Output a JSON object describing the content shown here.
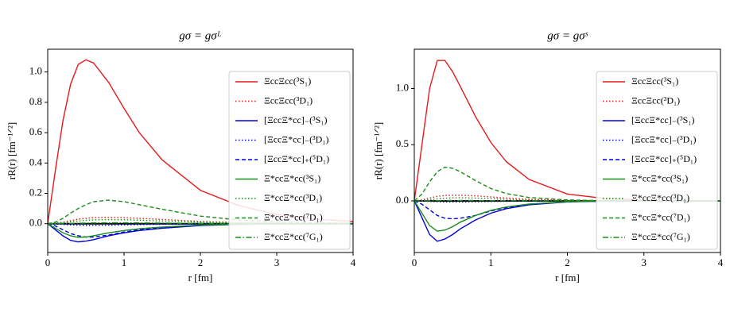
{
  "chart_data": [
    {
      "type": "line",
      "title": "gσ = gσᴸ",
      "xlabel": "r [fm]",
      "ylabel": "rR(r) [fm⁻¹ᐟ²]",
      "x": [
        0,
        0.1,
        0.2,
        0.3,
        0.4,
        0.5,
        0.6,
        0.8,
        1.0,
        1.2,
        1.5,
        2.0,
        2.5,
        3.0,
        3.5,
        4.0
      ],
      "xlim": [
        0,
        4
      ],
      "xticks": [
        0,
        1,
        2,
        3,
        4
      ],
      "ylim": [
        -0.19,
        1.15
      ],
      "yticks": [
        {
          "value": 0,
          "label": "0.0"
        },
        0.2,
        0.4,
        0.6,
        0.8,
        {
          "value": 1,
          "label": "1.0"
        }
      ],
      "legend": "upper right",
      "series": [
        {
          "name": "ΞccΞcc(³S₁)",
          "color": "#e41a1c",
          "style": "solid",
          "values": [
            0,
            0.35,
            0.68,
            0.92,
            1.05,
            1.08,
            1.06,
            0.93,
            0.76,
            0.6,
            0.42,
            0.22,
            0.12,
            0.06,
            0.03,
            0.015
          ]
        },
        {
          "name": "ΞccΞcc(³D₁)",
          "color": "#e41a1c",
          "style": "dotted",
          "values": [
            0,
            0.003,
            0.01,
            0.02,
            0.03,
            0.035,
            0.04,
            0.042,
            0.04,
            0.035,
            0.028,
            0.015,
            0.008,
            0.004,
            0.002,
            0.001
          ]
        },
        {
          "name": "[ΞccΞ*cc]₋(³S₁)",
          "color": "#0000dd",
          "style": "solid",
          "values": [
            0,
            -0.04,
            -0.08,
            -0.11,
            -0.12,
            -0.115,
            -0.105,
            -0.08,
            -0.06,
            -0.045,
            -0.03,
            -0.012,
            -0.005,
            -0.002,
            -0.001,
            0
          ]
        },
        {
          "name": "[ΞccΞ*cc]₋(³D₁)",
          "color": "#0000dd",
          "style": "dotted",
          "values": [
            0,
            -0.002,
            -0.005,
            -0.008,
            -0.01,
            -0.011,
            -0.011,
            -0.01,
            -0.008,
            -0.006,
            -0.004,
            -0.002,
            -0.001,
            0,
            0,
            0
          ]
        },
        {
          "name": "[ΞccΞ*cc]₊(⁵D₁)",
          "color": "#0000dd",
          "style": "dashed",
          "values": [
            0,
            -0.015,
            -0.04,
            -0.065,
            -0.08,
            -0.088,
            -0.088,
            -0.075,
            -0.055,
            -0.04,
            -0.025,
            -0.01,
            -0.004,
            -0.002,
            -0.001,
            0
          ]
        },
        {
          "name": "Ξ*ccΞ*cc(³S₁)",
          "color": "#1a8c1a",
          "style": "solid",
          "values": [
            0,
            -0.03,
            -0.06,
            -0.08,
            -0.09,
            -0.088,
            -0.08,
            -0.06,
            -0.045,
            -0.033,
            -0.022,
            -0.009,
            -0.004,
            -0.002,
            -0.001,
            0
          ]
        },
        {
          "name": "Ξ*ccΞ*cc(³D₁)",
          "color": "#1a8c1a",
          "style": "dotted",
          "values": [
            0,
            0.002,
            0.007,
            0.013,
            0.018,
            0.022,
            0.025,
            0.027,
            0.026,
            0.023,
            0.018,
            0.01,
            0.005,
            0.002,
            0.001,
            0
          ]
        },
        {
          "name": "Ξ*ccΞ*cc(⁷D₁)",
          "color": "#1a8c1a",
          "style": "dashed",
          "values": [
            0,
            0.01,
            0.035,
            0.07,
            0.1,
            0.125,
            0.145,
            0.155,
            0.145,
            0.125,
            0.095,
            0.05,
            0.025,
            0.012,
            0.006,
            0.003
          ]
        },
        {
          "name": "Ξ*ccΞ*cc(⁷G₁)",
          "color": "#1a8c1a",
          "style": "dashdot",
          "values": [
            0,
            0,
            0.001,
            0.002,
            0.003,
            0.004,
            0.005,
            0.006,
            0.006,
            0.005,
            0.004,
            0.002,
            0.001,
            0,
            0,
            0
          ]
        }
      ]
    },
    {
      "type": "line",
      "title": "gσ = gσˢ",
      "xlabel": "r [fm]",
      "ylabel": "rR(r) [fm⁻¹ᐟ²]",
      "x": [
        0,
        0.1,
        0.2,
        0.3,
        0.4,
        0.5,
        0.6,
        0.8,
        1.0,
        1.2,
        1.5,
        2.0,
        2.5,
        3.0,
        3.5,
        4.0
      ],
      "xlim": [
        0,
        4
      ],
      "xticks": [
        0,
        1,
        2,
        3,
        4
      ],
      "ylim": [
        -0.46,
        1.35
      ],
      "yticks": [
        {
          "value": 0,
          "label": "0.0"
        },
        0.5,
        {
          "value": 1,
          "label": "1.0"
        }
      ],
      "legend": "upper right",
      "series": [
        {
          "name": "ΞccΞcc(³S₁)",
          "color": "#e41a1c",
          "style": "solid",
          "values": [
            0,
            0.5,
            1.0,
            1.25,
            1.25,
            1.15,
            1.02,
            0.75,
            0.52,
            0.35,
            0.19,
            0.06,
            0.02,
            0.007,
            0.002,
            0.001
          ]
        },
        {
          "name": "ΞccΞcc(³D₁)",
          "color": "#e41a1c",
          "style": "dotted",
          "values": [
            0,
            0.01,
            0.025,
            0.04,
            0.048,
            0.05,
            0.05,
            0.045,
            0.035,
            0.025,
            0.014,
            0.005,
            0.002,
            0.001,
            0,
            0
          ]
        },
        {
          "name": "[ΞccΞ*cc]₋(³S₁)",
          "color": "#0000dd",
          "style": "solid",
          "values": [
            0,
            -0.15,
            -0.3,
            -0.36,
            -0.34,
            -0.3,
            -0.25,
            -0.17,
            -0.11,
            -0.07,
            -0.035,
            -0.01,
            -0.003,
            -0.001,
            0,
            0
          ]
        },
        {
          "name": "[ΞccΞ*cc]₋(³D₁)",
          "color": "#0000dd",
          "style": "dotted",
          "values": [
            0,
            -0.002,
            -0.005,
            -0.008,
            -0.01,
            -0.01,
            -0.01,
            -0.008,
            -0.006,
            -0.004,
            -0.002,
            -0.001,
            0,
            0,
            0,
            0
          ]
        },
        {
          "name": "[ΞccΞ*cc]₊(⁵D₁)",
          "color": "#0000dd",
          "style": "dashed",
          "values": [
            0,
            -0.03,
            -0.08,
            -0.13,
            -0.155,
            -0.16,
            -0.155,
            -0.13,
            -0.09,
            -0.06,
            -0.03,
            -0.008,
            -0.002,
            -0.001,
            0,
            0
          ]
        },
        {
          "name": "Ξ*ccΞ*cc(³S₁)",
          "color": "#1a8c1a",
          "style": "solid",
          "values": [
            0,
            -0.11,
            -0.22,
            -0.27,
            -0.26,
            -0.23,
            -0.19,
            -0.13,
            -0.085,
            -0.055,
            -0.028,
            -0.008,
            -0.002,
            -0.001,
            0,
            0
          ]
        },
        {
          "name": "Ξ*ccΞ*cc(³D₁)",
          "color": "#1a8c1a",
          "style": "dotted",
          "values": [
            0,
            0.003,
            0.01,
            0.018,
            0.024,
            0.027,
            0.028,
            0.025,
            0.02,
            0.014,
            0.008,
            0.003,
            0.001,
            0,
            0,
            0
          ]
        },
        {
          "name": "Ξ*ccΞ*cc(⁷D₁)",
          "color": "#1a8c1a",
          "style": "dashed",
          "values": [
            0,
            0.06,
            0.17,
            0.26,
            0.3,
            0.29,
            0.26,
            0.18,
            0.11,
            0.065,
            0.03,
            0.008,
            0.002,
            0.001,
            0,
            0
          ]
        },
        {
          "name": "Ξ*ccΞ*cc(⁷G₁)",
          "color": "#1a8c1a",
          "style": "dashdot",
          "values": [
            0,
            0,
            0.001,
            0.002,
            0.003,
            0.003,
            0.003,
            0.003,
            0.002,
            0.002,
            0.001,
            0,
            0,
            0,
            0,
            0
          ]
        }
      ]
    }
  ]
}
